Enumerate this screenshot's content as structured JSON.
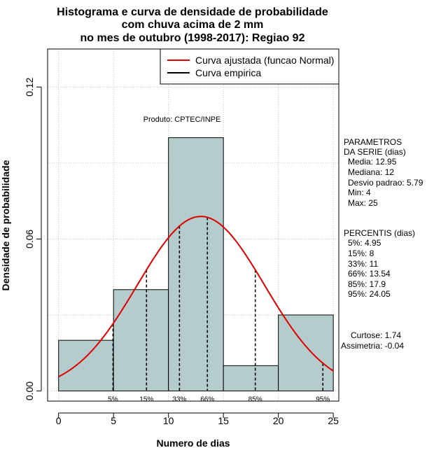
{
  "chart_data": {
    "type": "bar",
    "title": [
      "Histograma e curva de densidade de probabilidade",
      "com chuva acima de 2 mm",
      "no mes de outubro (1998-2017): Regiao 92"
    ],
    "xlabel": "Numero de dias",
    "ylabel": "Densidade de probabilidade",
    "xlim": [
      -1,
      25.5
    ],
    "ylim": [
      -0.004,
      0.135
    ],
    "x_ticks": [
      0,
      5,
      10,
      15,
      20,
      25
    ],
    "x_tick_labels": [
      "0",
      "5",
      "10",
      "15",
      "20",
      "25"
    ],
    "y_ticks": [
      0.0,
      0.06,
      0.12
    ],
    "y_tick_labels": [
      "0.00",
      "0.06",
      "0.12"
    ],
    "grid": true,
    "bins": [
      {
        "x0": 0,
        "x1": 5,
        "density": 0.02
      },
      {
        "x0": 5,
        "x1": 10,
        "density": 0.04
      },
      {
        "x0": 10,
        "x1": 15,
        "density": 0.1
      },
      {
        "x0": 15,
        "x1": 20,
        "density": 0.01
      },
      {
        "x0": 20,
        "x1": 25,
        "density": 0.03
      }
    ],
    "normal_fit": {
      "mean": 12.95,
      "sd": 5.79,
      "x_from": 0,
      "x_to": 25
    },
    "percentiles": [
      {
        "label": "5%",
        "x": 4.95
      },
      {
        "label": "15%",
        "x": 8
      },
      {
        "label": "33%",
        "x": 11
      },
      {
        "label": "66%",
        "x": 13.54
      },
      {
        "label": "85%",
        "x": 17.9
      },
      {
        "label": "95%",
        "x": 24.05
      }
    ],
    "legend": [
      {
        "label": "Curva ajustada (funcao Normal)",
        "color": "#e00000"
      },
      {
        "label": "Curva empirica",
        "color": "#000000"
      }
    ],
    "annotation": "Produto: CPTEC/INPE",
    "colors": {
      "bar_fill": "#b5cccc",
      "curve": "#e00000",
      "grid": "#b4b4b4"
    }
  },
  "side_panel": {
    "params_title": [
      "PARAMETROS",
      "DA SERIE (dias)"
    ],
    "params": [
      "Media: 12.95",
      "Mediana: 12",
      "Desvio padrao: 5.79",
      "Min: 4",
      "Max: 25"
    ],
    "percentis_title": "PERCENTIS (dias)",
    "percentis": [
      "5%: 4.95",
      "15%: 8",
      "33%: 11",
      "66%: 13.54",
      "85%: 17.9",
      "95%: 24.05"
    ],
    "curtose": "Curtose: 1.74",
    "assimetria": "Assimetria: -0.04"
  }
}
